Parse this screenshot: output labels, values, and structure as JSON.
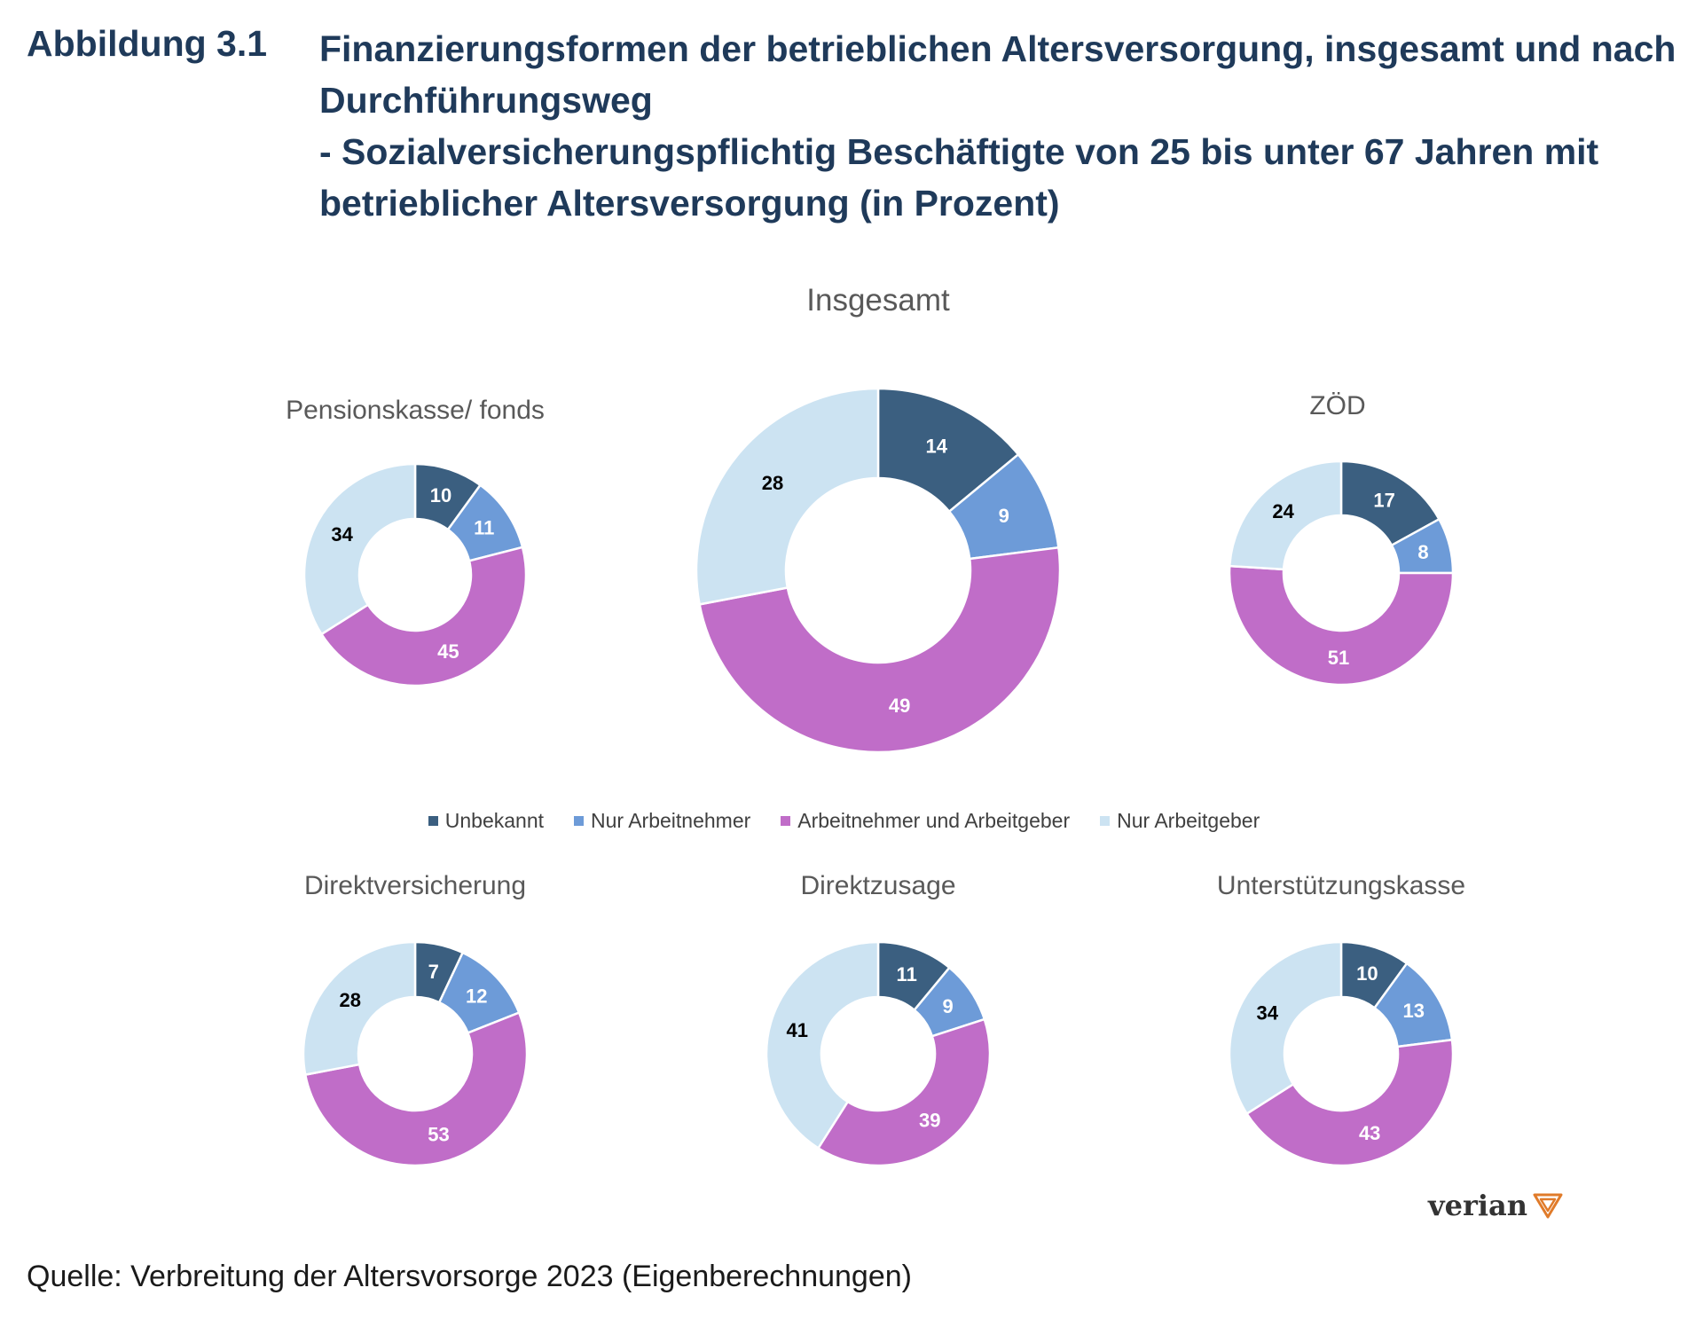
{
  "figure": {
    "label": "Abbildung 3.1",
    "title_lines": [
      "Finanzierungsformen der betrieblichen Altersversorgung, insgesamt und nach",
      "Durchführungsweg",
      "- Sozialversicherungspflichtig Beschäftigte von 25 bis unter 67 Jahren mit",
      "betrieblicher Altersversorgung (in Prozent)"
    ]
  },
  "legend": [
    {
      "label": "Unbekannt",
      "color": "#3b5f80"
    },
    {
      "label": "Nur Arbeitnehmer",
      "color": "#6d9bd8"
    },
    {
      "label": "Arbeitnehmer und Arbeitgeber",
      "color": "#c06dc8"
    },
    {
      "label": "Nur Arbeitgeber",
      "color": "#cce3f2"
    }
  ],
  "chart_data": [
    {
      "type": "pie",
      "title": "Insgesamt",
      "categories": [
        "Unbekannt",
        "Nur Arbeitnehmer",
        "Arbeitnehmer und Arbeitgeber",
        "Nur Arbeitgeber"
      ],
      "values": [
        14,
        9,
        49,
        28
      ]
    },
    {
      "type": "pie",
      "title": "Pensionskasse/ fonds",
      "categories": [
        "Unbekannt",
        "Nur Arbeitnehmer",
        "Arbeitnehmer und Arbeitgeber",
        "Nur Arbeitgeber"
      ],
      "values": [
        10,
        11,
        45,
        34
      ]
    },
    {
      "type": "pie",
      "title": "ZÖD",
      "categories": [
        "Unbekannt",
        "Nur Arbeitnehmer",
        "Arbeitnehmer und Arbeitgeber",
        "Nur Arbeitgeber"
      ],
      "values": [
        17,
        8,
        51,
        24
      ]
    },
    {
      "type": "pie",
      "title": "Direktversicherung",
      "categories": [
        "Unbekannt",
        "Nur Arbeitnehmer",
        "Arbeitnehmer und Arbeitgeber",
        "Nur Arbeitgeber"
      ],
      "values": [
        7,
        12,
        53,
        28
      ]
    },
    {
      "type": "pie",
      "title": "Direktzusage",
      "categories": [
        "Unbekannt",
        "Nur Arbeitnehmer",
        "Arbeitnehmer und Arbeitgeber",
        "Nur Arbeitgeber"
      ],
      "values": [
        11,
        9,
        39,
        41
      ]
    },
    {
      "type": "pie",
      "title": "Unterstützungskasse",
      "categories": [
        "Unbekannt",
        "Nur Arbeitnehmer",
        "Arbeitnehmer und Arbeitgeber",
        "Nur Arbeitgeber"
      ],
      "values": [
        10,
        13,
        43,
        34
      ]
    }
  ],
  "label_colors": [
    "#ffffff",
    "#ffffff",
    "#ffffff",
    "#000000"
  ],
  "logo": {
    "text": "verian",
    "color": "#e07b2a"
  },
  "source": "Quelle: Verbreitung der Altersvorsorge 2023 (Eigenberechnungen)"
}
